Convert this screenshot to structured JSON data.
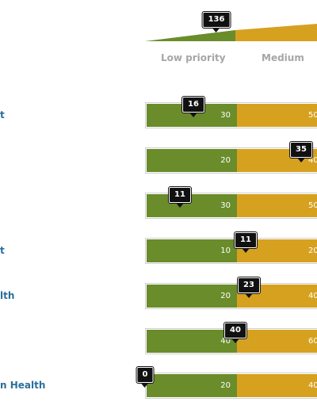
{
  "scale": {
    "total": "136",
    "low_label": "Low priority",
    "medium_label": "Medium",
    "colors": {
      "low": "#6a8c2a",
      "medium": "#d6a11e"
    }
  },
  "rows": [
    {
      "label": "t",
      "low_value": "30",
      "medium_value": "50",
      "marker": "16"
    },
    {
      "label": "",
      "low_value": "20",
      "medium_value": "40",
      "marker": "35"
    },
    {
      "label": "",
      "low_value": "30",
      "medium_value": "50",
      "marker": "11"
    },
    {
      "label": "t",
      "low_value": "10",
      "medium_value": "20",
      "marker": "11"
    },
    {
      "label": "lth",
      "low_value": "20",
      "medium_value": "40",
      "marker": "23"
    },
    {
      "label": "",
      "low_value": "40",
      "medium_value": "60",
      "marker": "40"
    },
    {
      "label": "n Health",
      "low_value": "20",
      "medium_value": "40",
      "marker": "0"
    }
  ]
}
